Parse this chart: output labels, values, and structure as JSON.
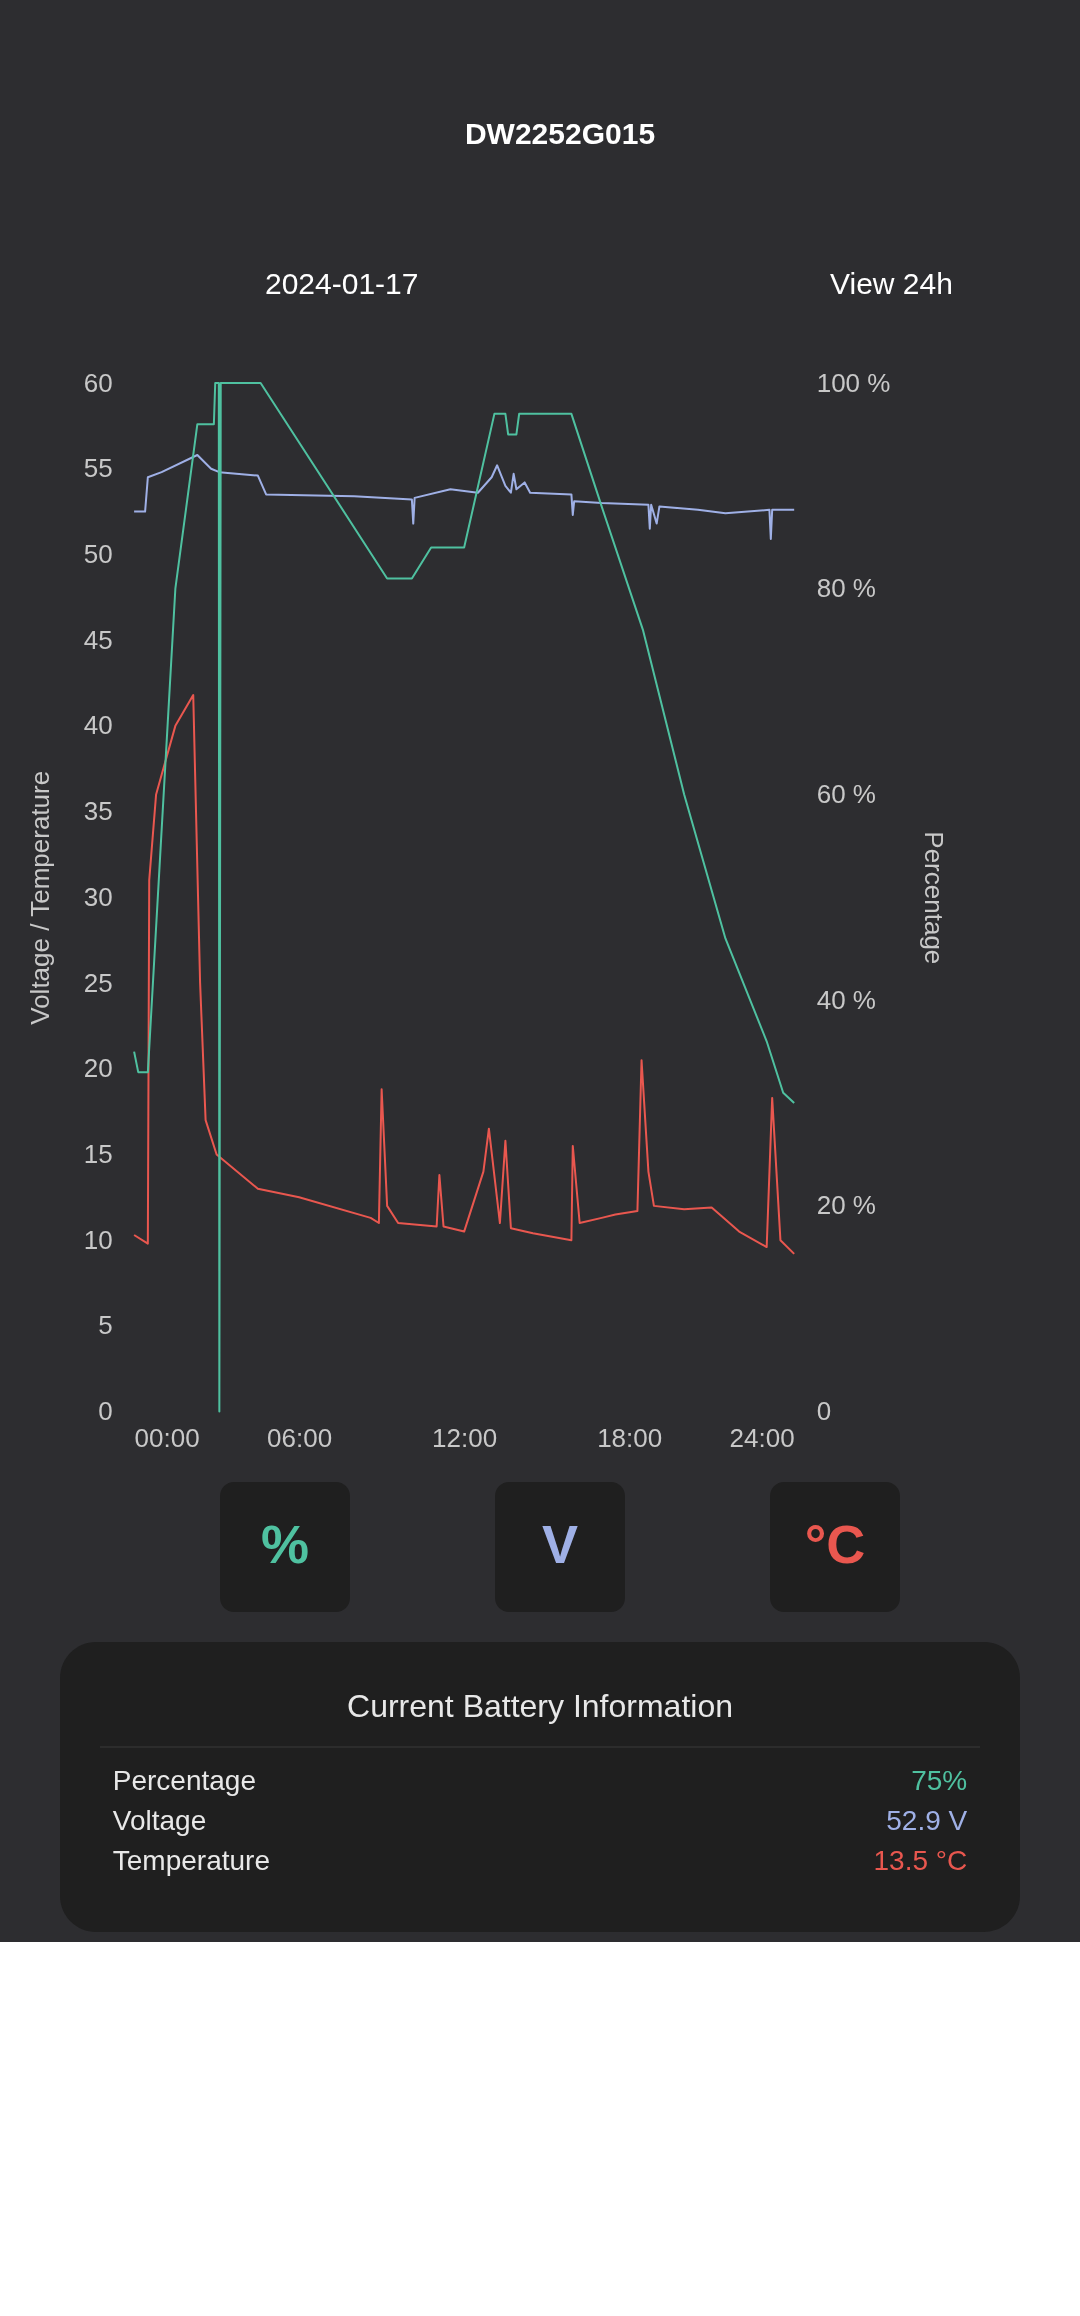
{
  "chart_data": [
    {
      "type": "line",
      "title": "DW2252G015",
      "subtitle": "2024-01-17",
      "annotations": [
        "View 24h"
      ],
      "xlabel": null,
      "ylabel": "Voltage / Temperature",
      "y2label": "Percentage",
      "xlim": [
        0,
        24
      ],
      "xticks": [
        {
          "value": 0,
          "label": "00:00"
        },
        {
          "value": 6,
          "label": "06:00"
        },
        {
          "value": 12,
          "label": "12:00"
        },
        {
          "value": 18,
          "label": "18:00"
        },
        {
          "value": 24,
          "label": "24:00"
        }
      ],
      "ylim": [
        0,
        60
      ],
      "yticks": [
        0,
        5,
        10,
        15,
        20,
        25,
        30,
        35,
        40,
        45,
        50,
        55,
        60
      ],
      "y2lim": [
        0,
        100
      ],
      "y2ticks": [
        0,
        {
          "value": 20,
          "label": "20 %"
        },
        {
          "value": 40,
          "label": "40 %"
        },
        {
          "value": 60,
          "label": "60 %"
        },
        {
          "value": 80,
          "label": "80 %"
        },
        {
          "value": 100,
          "label": "100 %"
        }
      ],
      "grid": false,
      "legend": "bottom",
      "line_style": "solid",
      "marker": "none",
      "series": [
        {
          "name": "%",
          "color": "#4fc1a0",
          "axis": "y2",
          "x": [
            0,
            0.15,
            0.5,
            1.5,
            2.3,
            2.9,
            2.95,
            3.08,
            3.1,
            3.15,
            4.6,
            9.2,
            10.1,
            10.8,
            12,
            13.1,
            13.5,
            13.6,
            13.9,
            14,
            15.9,
            17,
            18.5,
            20,
            21.5,
            23,
            23.6,
            24
          ],
          "values": [
            35,
            33,
            33,
            80,
            96,
            96,
            100,
            100,
            0,
            100,
            100,
            81,
            81,
            84,
            84,
            97,
            97,
            95,
            95,
            97,
            97,
            88,
            76,
            60,
            46,
            36,
            31,
            30
          ]
        },
        {
          "name": "V",
          "color": "#9fb0e6",
          "axis": "y",
          "x": [
            0,
            0.4,
            0.5,
            1,
            2.3,
            2.8,
            3.1,
            4.5,
            4.8,
            8,
            10.1,
            10.15,
            10.2,
            11.5,
            12.5,
            13,
            13.2,
            13.5,
            13.7,
            13.8,
            13.9,
            14.2,
            14.4,
            15.9,
            15.95,
            16,
            17,
            18.7,
            18.75,
            18.8,
            19,
            19.1,
            20.5,
            21.5,
            23.1,
            23.15,
            23.2,
            24
          ],
          "values": [
            52.5,
            52.5,
            54.5,
            54.8,
            55.8,
            55,
            54.8,
            54.6,
            53.5,
            53.4,
            53.2,
            51.8,
            53.3,
            53.8,
            53.6,
            54.5,
            55.2,
            54,
            53.6,
            54.7,
            53.8,
            54.2,
            53.6,
            53.5,
            52.3,
            53.1,
            53,
            52.9,
            51.5,
            52.9,
            51.8,
            52.8,
            52.6,
            52.4,
            52.6,
            50.9,
            52.6,
            52.6
          ]
        },
        {
          "name": "°C",
          "color": "#e9574f",
          "axis": "y",
          "x": [
            0,
            0.5,
            0.55,
            0.8,
            1.5,
            2.15,
            2.4,
            2.6,
            3,
            4.5,
            6,
            8.6,
            8.9,
            9,
            9.2,
            9.6,
            11,
            11.1,
            11.25,
            12,
            12.7,
            12.9,
            13.3,
            13.5,
            13.7,
            14.5,
            15.9,
            15.95,
            16.2,
            17,
            17.5,
            18.3,
            18.45,
            18.7,
            18.9,
            20,
            21,
            22,
            23,
            23.2,
            23.5,
            24
          ],
          "values": [
            10.3,
            9.8,
            31,
            36,
            40,
            41.8,
            25,
            17,
            15,
            13,
            12.5,
            11.3,
            11,
            18.8,
            12,
            11,
            10.8,
            13.8,
            10.8,
            10.5,
            14,
            16.5,
            11,
            15.8,
            10.7,
            10.4,
            10,
            15.5,
            11,
            11.3,
            11.5,
            11.7,
            20.5,
            14,
            12,
            11.8,
            11.9,
            10.5,
            9.6,
            18.3,
            10,
            9.2
          ]
        }
      ]
    },
    {
      "type": "other",
      "title": "Current Battery Information",
      "annotations": [
        "Percentage",
        "75%",
        "Voltage",
        "52.9 V",
        "Temperature",
        "13.5 °C"
      ]
    }
  ]
}
